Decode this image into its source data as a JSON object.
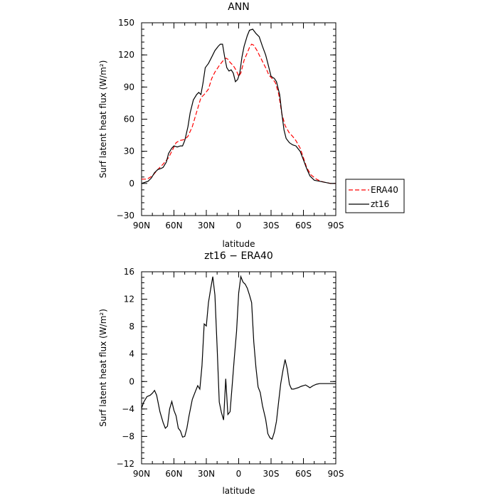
{
  "chart_data": [
    {
      "type": "line",
      "title": "ANN",
      "xlabel": "latitude",
      "ylabel": "Surf latent heat flux (W/m²)",
      "xlim": [
        -90,
        90
      ],
      "ylim": [
        -30,
        150
      ],
      "x_ticks": [
        -90,
        -60,
        -30,
        0,
        30,
        60,
        90
      ],
      "x_tick_labels": [
        "90N",
        "60N",
        "30N",
        "0",
        "30S",
        "60S",
        "90S"
      ],
      "y_ticks": [
        -30,
        0,
        30,
        60,
        90,
        120,
        150
      ],
      "y_tick_labels": [
        "−30",
        "0",
        "30",
        "60",
        "90",
        "120",
        "150"
      ],
      "grid": false,
      "legend": "right",
      "series": [
        {
          "name": "ERA40",
          "color": "#ff0000",
          "style": "dashed",
          "points": [
            [
              -90,
              4
            ],
            [
              -85,
              4
            ],
            [
              -80,
              7
            ],
            [
              -75,
              13
            ],
            [
              -70,
              18
            ],
            [
              -65,
              24
            ],
            [
              -62,
              30
            ],
            [
              -58,
              38
            ],
            [
              -55,
              40
            ],
            [
              -50,
              41
            ],
            [
              -47,
              44
            ],
            [
              -43,
              53
            ],
            [
              -38,
              70
            ],
            [
              -35,
              80
            ],
            [
              -32,
              83
            ],
            [
              -28,
              88
            ],
            [
              -25,
              98
            ],
            [
              -22,
              104
            ],
            [
              -18,
              110
            ],
            [
              -15,
              114
            ],
            [
              -12,
              117
            ],
            [
              -10,
              116
            ],
            [
              -8,
              113
            ],
            [
              -5,
              110
            ],
            [
              -2,
              105
            ],
            [
              0,
              100
            ],
            [
              2,
              103
            ],
            [
              5,
              115
            ],
            [
              8,
              122
            ],
            [
              10,
              127
            ],
            [
              12,
              130
            ],
            [
              14,
              129
            ],
            [
              17,
              124
            ],
            [
              20,
              118
            ],
            [
              23,
              112
            ],
            [
              26,
              106
            ],
            [
              28,
              101
            ],
            [
              31,
              98
            ],
            [
              34,
              94
            ],
            [
              37,
              84
            ],
            [
              40,
              65
            ],
            [
              43,
              54
            ],
            [
              47,
              47
            ],
            [
              50,
              44
            ],
            [
              53,
              40
            ],
            [
              57,
              33
            ],
            [
              60,
              24
            ],
            [
              63,
              15
            ],
            [
              67,
              8
            ],
            [
              72,
              4
            ],
            [
              76,
              2
            ],
            [
              80,
              1
            ],
            [
              85,
              0
            ],
            [
              90,
              0
            ]
          ]
        },
        {
          "name": "zt16",
          "color": "#000000",
          "style": "solid",
          "points": [
            [
              -90,
              0
            ],
            [
              -87,
              1
            ],
            [
              -84,
              2
            ],
            [
              -81,
              5
            ],
            [
              -78,
              10
            ],
            [
              -75,
              13
            ],
            [
              -72,
              14
            ],
            [
              -70,
              15
            ],
            [
              -67,
              20
            ],
            [
              -65,
              28
            ],
            [
              -62,
              33
            ],
            [
              -60,
              35
            ],
            [
              -57,
              34
            ],
            [
              -54,
              35
            ],
            [
              -52,
              35
            ],
            [
              -50,
              40
            ],
            [
              -47,
              53
            ],
            [
              -45,
              66
            ],
            [
              -42,
              78
            ],
            [
              -39,
              83
            ],
            [
              -37,
              85
            ],
            [
              -35,
              83
            ],
            [
              -33,
              94
            ],
            [
              -31,
              108
            ],
            [
              -28,
              112
            ],
            [
              -25,
              118
            ],
            [
              -22,
              124
            ],
            [
              -19,
              128
            ],
            [
              -17,
              130
            ],
            [
              -15,
              130
            ],
            [
              -13,
              118
            ],
            [
              -11,
              108
            ],
            [
              -9,
              105
            ],
            [
              -7,
              106
            ],
            [
              -5,
              103
            ],
            [
              -3,
              95
            ],
            [
              -1,
              97
            ],
            [
              1,
              103
            ],
            [
              3,
              118
            ],
            [
              5,
              128
            ],
            [
              8,
              138
            ],
            [
              10,
              143
            ],
            [
              13,
              144
            ],
            [
              16,
              140
            ],
            [
              19,
              137
            ],
            [
              22,
              128
            ],
            [
              25,
              120
            ],
            [
              27,
              112
            ],
            [
              30,
              100
            ],
            [
              33,
              98
            ],
            [
              35,
              95
            ],
            [
              38,
              83
            ],
            [
              40,
              65
            ],
            [
              42,
              50
            ],
            [
              44,
              42
            ],
            [
              47,
              38
            ],
            [
              50,
              36
            ],
            [
              53,
              35
            ],
            [
              57,
              30
            ],
            [
              60,
              22
            ],
            [
              63,
              14
            ],
            [
              66,
              7
            ],
            [
              70,
              3
            ],
            [
              75,
              2
            ],
            [
              80,
              1
            ],
            [
              85,
              0
            ],
            [
              90,
              0
            ]
          ]
        }
      ]
    },
    {
      "type": "line",
      "title": "zt16 − ERA40",
      "xlabel": "latitude",
      "ylabel": "Surf latent heat flux (W/m²)",
      "xlim": [
        -90,
        90
      ],
      "ylim": [
        -12,
        16
      ],
      "x_ticks": [
        -90,
        -60,
        -30,
        0,
        30,
        60,
        90
      ],
      "x_tick_labels": [
        "90N",
        "60N",
        "30N",
        "0",
        "30S",
        "60S",
        "90S"
      ],
      "y_ticks": [
        -12,
        -8,
        -4,
        0,
        4,
        8,
        12,
        16
      ],
      "y_tick_labels": [
        "−12",
        "−8",
        "−4",
        "0",
        "4",
        "8",
        "12",
        "16"
      ],
      "grid": false,
      "series": [
        {
          "name": "",
          "color": "#000000",
          "style": "solid",
          "points": [
            [
              -90,
              -3.9
            ],
            [
              -88,
              -3.0
            ],
            [
              -85,
              -2.2
            ],
            [
              -82,
              -2.0
            ],
            [
              -80,
              -1.7
            ],
            [
              -78,
              -1.3
            ],
            [
              -76,
              -2.0
            ],
            [
              -73,
              -4.4
            ],
            [
              -70,
              -6.0
            ],
            [
              -68,
              -6.8
            ],
            [
              -66,
              -6.5
            ],
            [
              -64,
              -4.0
            ],
            [
              -62,
              -2.9
            ],
            [
              -60,
              -4.2
            ],
            [
              -58,
              -5.0
            ],
            [
              -56,
              -6.8
            ],
            [
              -54,
              -7.2
            ],
            [
              -52,
              -8.1
            ],
            [
              -50,
              -8.0
            ],
            [
              -48,
              -6.8
            ],
            [
              -46,
              -5.0
            ],
            [
              -43,
              -2.6
            ],
            [
              -40,
              -1.4
            ],
            [
              -38,
              -0.6
            ],
            [
              -36,
              -1.1
            ],
            [
              -34,
              2.3
            ],
            [
              -32,
              8.4
            ],
            [
              -30,
              8.1
            ],
            [
              -28,
              11.5
            ],
            [
              -26,
              13.5
            ],
            [
              -24,
              15.3
            ],
            [
              -22,
              12.6
            ],
            [
              -20,
              5.0
            ],
            [
              -18,
              -3.0
            ],
            [
              -16,
              -4.5
            ],
            [
              -14,
              -5.6
            ],
            [
              -12,
              0.4
            ],
            [
              -10,
              -4.8
            ],
            [
              -8,
              -4.4
            ],
            [
              -6,
              -0.5
            ],
            [
              -4,
              3.5
            ],
            [
              -2,
              7.3
            ],
            [
              0,
              12.9
            ],
            [
              2,
              15.3
            ],
            [
              4,
              14.5
            ],
            [
              6,
              14.2
            ],
            [
              8,
              13.6
            ],
            [
              10,
              12.6
            ],
            [
              12,
              11.5
            ],
            [
              14,
              5.8
            ],
            [
              16,
              2.0
            ],
            [
              18,
              -0.8
            ],
            [
              20,
              -1.6
            ],
            [
              22,
              -3.5
            ],
            [
              25,
              -5.5
            ],
            [
              27,
              -7.6
            ],
            [
              29,
              -8.2
            ],
            [
              31,
              -8.4
            ],
            [
              33,
              -7.4
            ],
            [
              35,
              -5.8
            ],
            [
              37,
              -3.0
            ],
            [
              39,
              -0.3
            ],
            [
              41,
              1.6
            ],
            [
              43,
              3.2
            ],
            [
              45,
              1.8
            ],
            [
              47,
              -0.4
            ],
            [
              49,
              -1.1
            ],
            [
              51,
              -1.1
            ],
            [
              53,
              -1.0
            ],
            [
              55,
              -0.9
            ],
            [
              58,
              -0.7
            ],
            [
              60,
              -0.6
            ],
            [
              62,
              -0.5
            ],
            [
              64,
              -0.7
            ],
            [
              66,
              -0.9
            ],
            [
              69,
              -0.6
            ],
            [
              72,
              -0.4
            ],
            [
              75,
              -0.3
            ],
            [
              90,
              -0.3
            ]
          ]
        }
      ]
    }
  ]
}
